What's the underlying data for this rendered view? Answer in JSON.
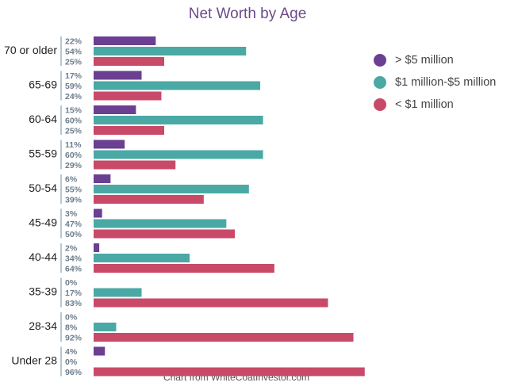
{
  "chart_data": {
    "type": "bar",
    "orientation": "horizontal",
    "title": "Net Worth by Age",
    "categories": [
      "70 or older",
      "65-69",
      "60-64",
      "55-59",
      "50-54",
      "45-49",
      "40-44",
      "35-39",
      "28-34",
      "Under 28"
    ],
    "series": [
      {
        "name": "> $5 million",
        "color": "#6b3f91",
        "values": [
          22,
          17,
          15,
          11,
          6,
          3,
          2,
          0,
          0,
          4
        ],
        "value_labels": [
          "22%",
          "17%",
          "15%",
          "11%",
          "6%",
          "3%",
          "2%",
          "0%",
          "0%",
          "4%"
        ]
      },
      {
        "name": "$1 million-$5 million",
        "color": "#4aa9a5",
        "values": [
          54,
          59,
          60,
          60,
          55,
          47,
          34,
          17,
          8,
          0
        ],
        "value_labels": [
          "54%",
          "59%",
          "60%",
          "60%",
          "55%",
          "47%",
          "34%",
          "17%",
          "8%",
          "0%"
        ]
      },
      {
        "name": "< $1 million",
        "color": "#c94a68",
        "values": [
          25,
          24,
          25,
          29,
          39,
          50,
          64,
          83,
          92,
          96
        ],
        "value_labels": [
          "25%",
          "24%",
          "25%",
          "29%",
          "39%",
          "50%",
          "64%",
          "83%",
          "92%",
          "96%"
        ]
      }
    ],
    "xlim": [
      0,
      100
    ],
    "legend": "top-right",
    "source": "Chart from WhiteCoatInvestor.com"
  }
}
